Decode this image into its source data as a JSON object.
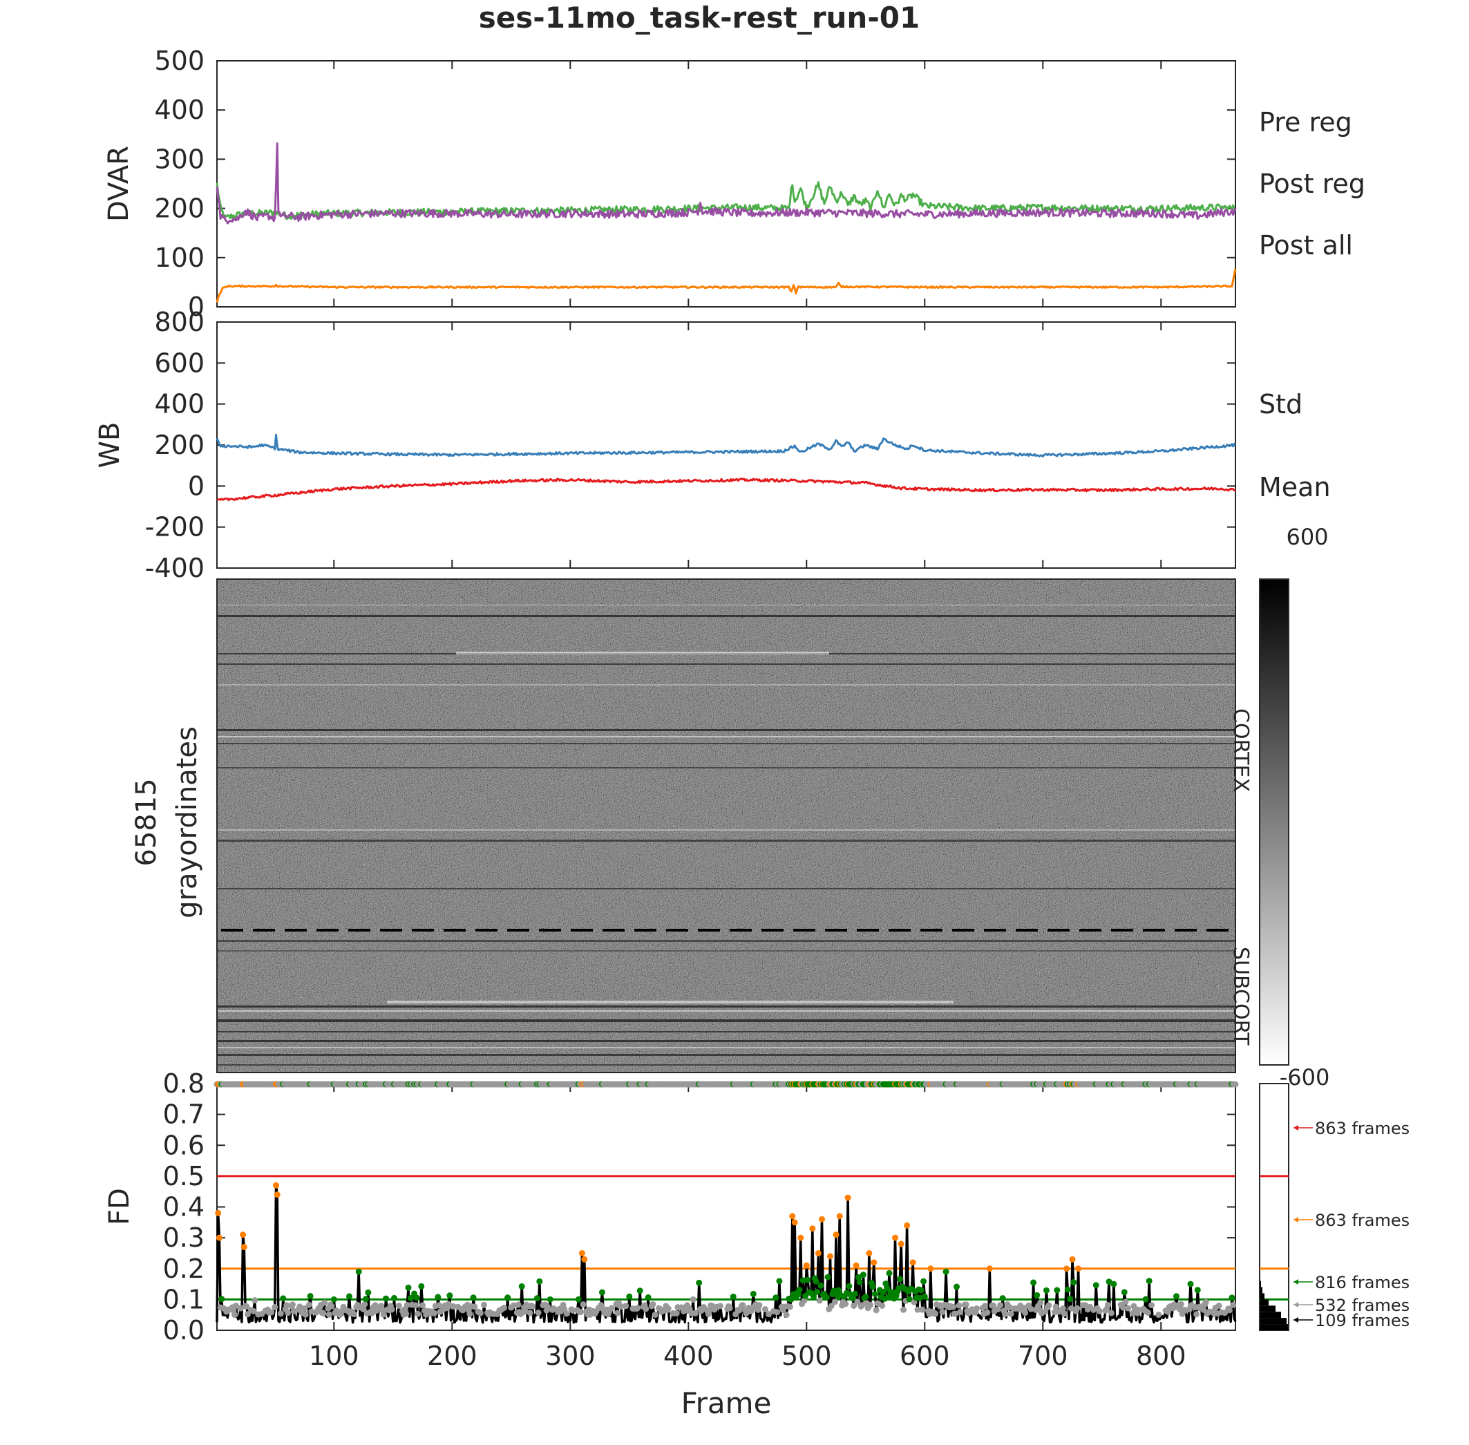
{
  "chart_data": [
    {
      "id": "dvar",
      "type": "line",
      "title": "ses-11mo_task-rest_run-01",
      "ylabel": "DVAR",
      "xlim": [
        1,
        863
      ],
      "ylim": [
        0,
        500
      ],
      "yticks": [
        "0",
        "100",
        "200",
        "300",
        "400",
        "500"
      ],
      "series": [
        {
          "name": "Pre reg",
          "color": "#4daf4a",
          "x": [
            1,
            4,
            8,
            15,
            25,
            40,
            50,
            60,
            80,
            100,
            150,
            200,
            250,
            300,
            350,
            400,
            450,
            485,
            488,
            490,
            495,
            500,
            505,
            510,
            515,
            520,
            525,
            530,
            535,
            540,
            545,
            550,
            555,
            560,
            565,
            570,
            575,
            580,
            585,
            590,
            600,
            650,
            700,
            750,
            800,
            850,
            863
          ],
          "values": [
            250,
            200,
            180,
            185,
            190,
            190,
            192,
            185,
            188,
            190,
            192,
            193,
            195,
            196,
            198,
            200,
            202,
            200,
            252,
            215,
            240,
            200,
            225,
            248,
            210,
            245,
            215,
            232,
            205,
            225,
            208,
            215,
            200,
            240,
            200,
            230,
            205,
            225,
            218,
            228,
            205,
            200,
            202,
            200,
            200,
            202,
            200
          ]
        },
        {
          "name": "Post reg",
          "color": "#984ea3",
          "x": [
            1,
            4,
            8,
            12,
            18,
            25,
            35,
            45,
            50,
            51,
            52,
            53,
            55,
            60,
            70,
            80,
            100,
            150,
            200,
            250,
            300,
            350,
            400,
            408,
            410,
            412,
            450,
            500,
            550,
            600,
            650,
            700,
            750,
            800,
            830,
            863
          ],
          "values": [
            250,
            185,
            175,
            180,
            178,
            195,
            180,
            185,
            180,
            250,
            325,
            200,
            182,
            185,
            182,
            185,
            188,
            190,
            190,
            188,
            190,
            188,
            192,
            195,
            212,
            195,
            190,
            192,
            190,
            188,
            190,
            192,
            190,
            190,
            185,
            195
          ]
        },
        {
          "name": "Post all",
          "color": "#ff7f00",
          "x": [
            1,
            3,
            6,
            10,
            50,
            51,
            52,
            100,
            200,
            300,
            400,
            485,
            487,
            489,
            491,
            493,
            495,
            500,
            525,
            527,
            529,
            600,
            700,
            800,
            860,
            862,
            863
          ],
          "values": [
            10,
            25,
            38,
            42,
            42,
            46,
            42,
            40,
            40,
            40,
            40,
            40,
            30,
            45,
            28,
            42,
            40,
            40,
            40,
            48,
            41,
            40,
            40,
            40,
            42,
            65,
            78
          ]
        }
      ]
    },
    {
      "id": "wb",
      "type": "line",
      "ylabel": "WB",
      "xlim": [
        1,
        863
      ],
      "ylim": [
        -400,
        800
      ],
      "yticks": [
        "-400",
        "-200",
        "0",
        "200",
        "400",
        "600",
        "800"
      ],
      "series": [
        {
          "name": "Std",
          "color": "#377eb8",
          "x": [
            1,
            3,
            5,
            10,
            30,
            40,
            50,
            51,
            52,
            53,
            56,
            70,
            100,
            150,
            200,
            300,
            400,
            480,
            490,
            495,
            510,
            520,
            525,
            530,
            535,
            540,
            550,
            560,
            565,
            570,
            575,
            580,
            585,
            590,
            600,
            650,
            700,
            750,
            800,
            863
          ],
          "values": [
            230,
            200,
            195,
            195,
            190,
            200,
            185,
            250,
            190,
            180,
            178,
            165,
            160,
            155,
            152,
            160,
            165,
            170,
            195,
            165,
            205,
            180,
            220,
            190,
            215,
            170,
            200,
            180,
            230,
            215,
            200,
            190,
            180,
            200,
            175,
            160,
            150,
            158,
            170,
            200
          ]
        },
        {
          "name": "Mean",
          "color": "#e41a1c",
          "x": [
            1,
            20,
            50,
            100,
            150,
            200,
            250,
            300,
            350,
            400,
            450,
            500,
            550,
            580,
            600,
            650,
            700,
            750,
            800,
            850,
            863
          ],
          "values": [
            -70,
            -60,
            -45,
            -15,
            0,
            10,
            25,
            30,
            20,
            25,
            30,
            25,
            15,
            -10,
            -15,
            -20,
            -18,
            -20,
            -15,
            -12,
            -20
          ]
        }
      ]
    },
    {
      "id": "grayplot",
      "type": "heatmap",
      "ylabel_line1": "65815",
      "ylabel_line2": "grayordinates",
      "region_labels": [
        "CORTEX",
        "SUBCORT"
      ],
      "colorbar_max": "600",
      "colorbar_min": "-600",
      "colormap": "gray-reversed"
    },
    {
      "id": "fd",
      "type": "line",
      "ylabel": "FD",
      "xlabel": "Frame",
      "xlim": [
        1,
        863
      ],
      "ylim": [
        0,
        0.8
      ],
      "xticks": [
        "100",
        "200",
        "300",
        "400",
        "500",
        "600",
        "700",
        "800"
      ],
      "yticks": [
        "0.0",
        "0.1",
        "0.2",
        "0.3",
        "0.4",
        "0.5",
        "0.6",
        "0.7",
        "0.8"
      ],
      "thresholds": [
        {
          "value": 0.5,
          "color": "#e41a1c"
        },
        {
          "value": 0.2,
          "color": "#ff7f00"
        },
        {
          "value": 0.1,
          "color": "#008000"
        }
      ],
      "spikes": [
        {
          "x": 2,
          "y": 0.38
        },
        {
          "x": 3,
          "y": 0.3
        },
        {
          "x": 23,
          "y": 0.31
        },
        {
          "x": 24,
          "y": 0.27
        },
        {
          "x": 51,
          "y": 0.47
        },
        {
          "x": 52,
          "y": 0.44
        },
        {
          "x": 121,
          "y": 0.19
        },
        {
          "x": 310,
          "y": 0.25
        },
        {
          "x": 312,
          "y": 0.23
        },
        {
          "x": 488,
          "y": 0.37
        },
        {
          "x": 490,
          "y": 0.35
        },
        {
          "x": 495,
          "y": 0.3
        },
        {
          "x": 500,
          "y": 0.21
        },
        {
          "x": 505,
          "y": 0.33
        },
        {
          "x": 510,
          "y": 0.25
        },
        {
          "x": 513,
          "y": 0.36
        },
        {
          "x": 520,
          "y": 0.24
        },
        {
          "x": 525,
          "y": 0.31
        },
        {
          "x": 528,
          "y": 0.37
        },
        {
          "x": 535,
          "y": 0.43
        },
        {
          "x": 542,
          "y": 0.21
        },
        {
          "x": 548,
          "y": 0.18
        },
        {
          "x": 553,
          "y": 0.25
        },
        {
          "x": 557,
          "y": 0.22
        },
        {
          "x": 575,
          "y": 0.3
        },
        {
          "x": 580,
          "y": 0.28
        },
        {
          "x": 585,
          "y": 0.34
        },
        {
          "x": 590,
          "y": 0.22
        },
        {
          "x": 605,
          "y": 0.2
        },
        {
          "x": 618,
          "y": 0.19
        },
        {
          "x": 655,
          "y": 0.2
        },
        {
          "x": 720,
          "y": 0.2
        },
        {
          "x": 725,
          "y": 0.23
        },
        {
          "x": 730,
          "y": 0.2
        },
        {
          "x": 760,
          "y": 0.15
        },
        {
          "x": 790,
          "y": 0.16
        },
        {
          "x": 825,
          "y": 0.15
        }
      ],
      "histogram_labels": [
        {
          "text": "863 frames",
          "color": "#e41a1c",
          "value": 0.5
        },
        {
          "text": "863 frames",
          "color": "#ff7f00",
          "value": 0.2
        },
        {
          "text": "816 frames",
          "color": "#008000",
          "value": 0.1
        },
        {
          "text": "532 frames",
          "color": "#999999",
          "value": 0.06
        },
        {
          "text": "109 frames",
          "color": "#000000",
          "value": 0.02
        }
      ]
    }
  ]
}
